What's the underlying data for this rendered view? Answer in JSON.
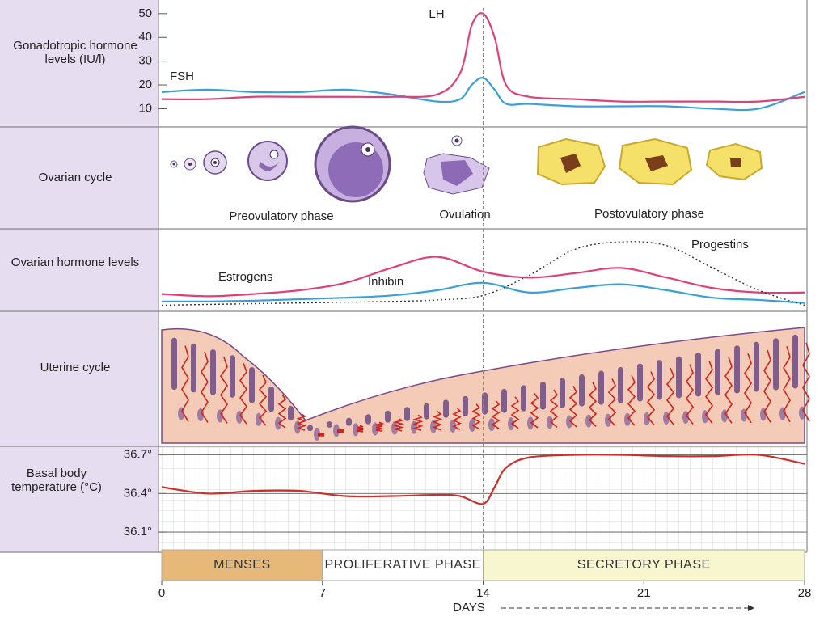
{
  "chart_data": [
    {
      "type": "line",
      "ylabel": "Gonadotropic hormone levels (IU/l)",
      "x": [
        0,
        2,
        4,
        6,
        8,
        10,
        12,
        13,
        13.5,
        14,
        14.5,
        15,
        16,
        18,
        20,
        22,
        24,
        26,
        28
      ],
      "series": [
        {
          "name": "FSH",
          "color": "#3aa0d8",
          "values": [
            17,
            18,
            17,
            17,
            18,
            16,
            13,
            14,
            20,
            23,
            18,
            12,
            12,
            11,
            11,
            11,
            10,
            10,
            17
          ]
        },
        {
          "name": "LH",
          "color": "#e0407a",
          "values": [
            14,
            14,
            15,
            15,
            15,
            15,
            16,
            25,
            45,
            50,
            40,
            20,
            15,
            14,
            13,
            13,
            13,
            13,
            15
          ]
        }
      ],
      "ylim": [
        3,
        53
      ],
      "yticks": [
        10,
        20,
        30,
        40,
        50
      ],
      "grid": false
    },
    {
      "type": "line",
      "ylabel": "Ovarian hormone levels",
      "x": [
        0,
        2,
        4,
        6,
        8,
        10,
        12,
        14,
        16,
        18,
        20,
        22,
        24,
        26,
        28
      ],
      "series": [
        {
          "name": "Estrogens",
          "color": "#e0407a",
          "dash": false,
          "values": [
            20,
            17,
            20,
            25,
            35,
            55,
            70,
            50,
            42,
            48,
            55,
            42,
            28,
            22,
            22
          ]
        },
        {
          "name": "Inhibin",
          "color": "#3aa0d8",
          "dash": false,
          "values": [
            10,
            10,
            11,
            13,
            15,
            18,
            25,
            35,
            22,
            28,
            33,
            25,
            15,
            12,
            8
          ]
        },
        {
          "name": "Progestins",
          "color": "#333333",
          "dash": true,
          "values": [
            5,
            6,
            7,
            8,
            9,
            10,
            12,
            18,
            45,
            80,
            90,
            85,
            55,
            25,
            5
          ]
        }
      ],
      "ylim": [
        0,
        100
      ]
    },
    {
      "type": "line",
      "ylabel": "Basal body temperature (°C)",
      "x": [
        0,
        2,
        4,
        6,
        8,
        10,
        12,
        13,
        14,
        14.5,
        15,
        16,
        18,
        20,
        22,
        24,
        26,
        28
      ],
      "series": [
        {
          "name": "Basal body temperature",
          "color": "#c8322a",
          "values": [
            36.45,
            36.4,
            36.42,
            36.42,
            36.38,
            36.38,
            36.39,
            36.38,
            36.32,
            36.45,
            36.6,
            36.68,
            36.7,
            36.7,
            36.69,
            36.69,
            36.7,
            36.63
          ]
        }
      ],
      "ylim": [
        35.95,
        36.76
      ],
      "yticks": [
        {
          "value": 36.1,
          "label": "36.1°"
        },
        {
          "value": 36.4,
          "label": "36.4°"
        },
        {
          "value": 36.7,
          "label": "36.7°"
        }
      ],
      "grid": true
    }
  ],
  "ovarian_cycle": {
    "label": "Ovarian cycle",
    "stages": [
      "Preovulatory phase",
      "Ovulation",
      "Postovulatory phase"
    ]
  },
  "uterine_cycle": {
    "label": "Uterine cycle"
  },
  "timeline": {
    "xticks": [
      0,
      7,
      14,
      21,
      28
    ],
    "xlabel": "DAYS",
    "phases": [
      {
        "label": "MENSES",
        "start": 0,
        "end": 7,
        "color": "#e6b97a"
      },
      {
        "label": "PROLIFERATIVE PHASE",
        "start": 7,
        "end": 14,
        "color": "#ffffff"
      },
      {
        "label": "SECRETORY PHASE",
        "start": 14,
        "end": 28,
        "color": "#f8f6cf"
      }
    ]
  }
}
